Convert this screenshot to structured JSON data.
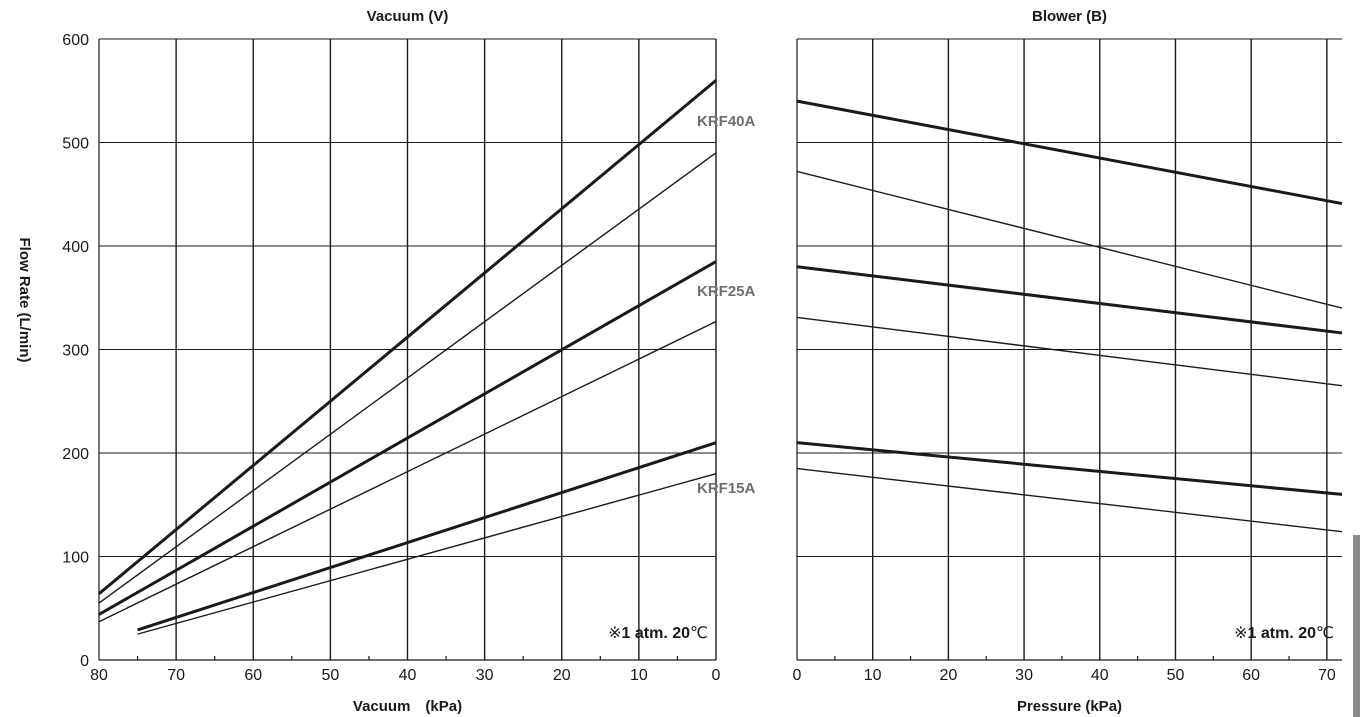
{
  "chart_data": [
    {
      "type": "line",
      "title": "Vacuum (V)",
      "xlabel": "Vacuum　(kPa)",
      "ylabel": "Flow Rate (L/min)",
      "xlim": [
        80,
        0
      ],
      "ylim": [
        0,
        600
      ],
      "x_ticks": [
        80,
        70,
        60,
        50,
        40,
        30,
        20,
        10,
        0
      ],
      "y_ticks": [
        0,
        100,
        200,
        300,
        400,
        500,
        600
      ],
      "grid": true,
      "note": {
        "symbol": "※",
        "bold": "1 atm. 20",
        "unit": "℃"
      },
      "series": [
        {
          "name": "KRF40A",
          "weight": "thick",
          "points": [
            [
              80,
              64
            ],
            [
              0,
              560
            ]
          ]
        },
        {
          "weight": "thin",
          "points": [
            [
              80,
              55
            ],
            [
              0,
              490
            ]
          ]
        },
        {
          "name": "KRF25A",
          "weight": "thick",
          "points": [
            [
              80,
              44
            ],
            [
              0,
              385
            ]
          ]
        },
        {
          "weight": "thin",
          "points": [
            [
              80,
              37
            ],
            [
              0,
              327
            ]
          ]
        },
        {
          "name": "KRF15A",
          "weight": "thick",
          "points": [
            [
              75,
              29
            ],
            [
              0,
              210
            ]
          ]
        },
        {
          "weight": "thin",
          "points": [
            [
              75,
              25
            ],
            [
              0,
              180
            ]
          ]
        }
      ]
    },
    {
      "type": "line",
      "title": "Blower (B)",
      "xlabel": "Pressure (kPa)",
      "xlim": [
        0,
        72
      ],
      "ylim": [
        0,
        600
      ],
      "x_ticks": [
        0,
        10,
        20,
        30,
        40,
        50,
        60,
        70
      ],
      "y_ticks": [
        0,
        100,
        200,
        300,
        400,
        500,
        600
      ],
      "grid": true,
      "note": {
        "symbol": "※",
        "bold": "1 atm. 20",
        "unit": "℃"
      },
      "series": [
        {
          "weight": "thick",
          "points": [
            [
              0,
              540
            ],
            [
              72,
              441
            ]
          ]
        },
        {
          "weight": "thin",
          "points": [
            [
              0,
              472
            ],
            [
              72,
              340
            ]
          ]
        },
        {
          "weight": "thick",
          "points": [
            [
              0,
              380
            ],
            [
              72,
              316
            ]
          ]
        },
        {
          "weight": "thin",
          "points": [
            [
              0,
              331
            ],
            [
              72,
              265
            ]
          ]
        },
        {
          "weight": "thick",
          "points": [
            [
              0,
              210
            ],
            [
              72,
              160
            ]
          ]
        },
        {
          "weight": "thin",
          "points": [
            [
              0,
              185
            ],
            [
              72,
              124
            ]
          ]
        }
      ]
    }
  ]
}
